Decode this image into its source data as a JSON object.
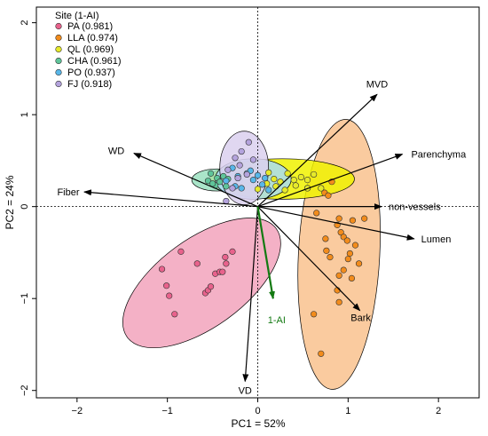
{
  "chart_data": {
    "type": "scatter",
    "xlabel": "PC1 = 52%",
    "ylabel": "PC2 = 24%",
    "xlim": [
      -2.45,
      2.45
    ],
    "ylim": [
      -2.08,
      2.17
    ],
    "xticks": [
      -2,
      -1,
      0,
      1,
      2
    ],
    "yticks": [
      -2,
      -1,
      0,
      1,
      2
    ],
    "tick_labels_x": [
      "−2",
      "−1",
      "0",
      "1",
      "2"
    ],
    "tick_labels_y": [
      "−2",
      "−1",
      "0",
      "1",
      "2"
    ],
    "legend": {
      "title": "Site (1-AI)",
      "placement": "top-left",
      "entries": [
        {
          "label": "PA (0.981)",
          "color": "#e8628c"
        },
        {
          "label": "LLA (0.974)",
          "color": "#f28c1c"
        },
        {
          "label": "QL (0.969)",
          "color": "#e6ea2a"
        },
        {
          "label": "CHA (0.961)",
          "color": "#5fc59a"
        },
        {
          "label": "PO (0.937)",
          "color": "#58b7e9"
        },
        {
          "label": "FJ (0.918)",
          "color": "#b4a3dd"
        }
      ]
    },
    "series": [
      {
        "name": "PA",
        "color": "#e8628c",
        "fill": "#f2a3bc",
        "ellipse": {
          "cx": -0.62,
          "cy": -0.83,
          "rx": 1.02,
          "ry": 0.48,
          "angle_deg": 36
        },
        "points": [
          [
            -1.06,
            -0.68
          ],
          [
            -1.01,
            -0.86
          ],
          [
            -0.98,
            -0.97
          ],
          [
            -0.92,
            -1.17
          ],
          [
            -0.85,
            -0.49
          ],
          [
            -0.67,
            -0.62
          ],
          [
            -0.58,
            -0.94
          ],
          [
            -0.55,
            -0.91
          ],
          [
            -0.52,
            -0.87
          ],
          [
            -0.47,
            -0.73
          ],
          [
            -0.42,
            -0.71
          ],
          [
            -0.39,
            -0.71
          ],
          [
            -0.35,
            -0.62
          ],
          [
            -0.36,
            -0.55
          ],
          [
            -0.28,
            -0.49
          ]
        ]
      },
      {
        "name": "LLA",
        "color": "#f28c1c",
        "fill": "#f9c28e",
        "ellipse": {
          "cx": 0.9,
          "cy": -0.52,
          "rx": 0.45,
          "ry": 1.47,
          "angle_deg": -3
        },
        "points": [
          [
            0.55,
            0.2
          ],
          [
            0.82,
            0.27
          ],
          [
            0.65,
            -0.07
          ],
          [
            0.74,
            0.15
          ],
          [
            0.78,
            0.12
          ],
          [
            0.9,
            -0.13
          ],
          [
            0.88,
            -0.2
          ],
          [
            0.92,
            -0.28
          ],
          [
            0.95,
            -0.33
          ],
          [
            0.99,
            -0.37
          ],
          [
            1.05,
            -0.15
          ],
          [
            1.08,
            -0.42
          ],
          [
            1.12,
            -0.62
          ],
          [
            1.18,
            -0.13
          ],
          [
            0.75,
            -0.35
          ],
          [
            0.76,
            -0.48
          ],
          [
            0.95,
            -0.69
          ],
          [
            1.02,
            -0.51
          ],
          [
            1.04,
            -0.78
          ],
          [
            0.88,
            -0.91
          ],
          [
            0.9,
            -1.04
          ],
          [
            0.62,
            -1.17
          ],
          [
            0.7,
            -1.6
          ],
          [
            1.0,
            -0.57
          ],
          [
            0.8,
            -0.55
          ],
          [
            0.9,
            -0.75
          ]
        ]
      },
      {
        "name": "QL",
        "color": "#e6ea2a",
        "fill": "#f0f200",
        "ellipse": {
          "cx": 0.27,
          "cy": 0.3,
          "rx": 0.8,
          "ry": 0.22,
          "angle_deg": 0
        },
        "points": [
          [
            0.0,
            0.19
          ],
          [
            0.1,
            0.25
          ],
          [
            0.18,
            0.3
          ],
          [
            0.25,
            0.27
          ],
          [
            0.33,
            0.36
          ],
          [
            0.4,
            0.29
          ],
          [
            0.48,
            0.32
          ],
          [
            0.55,
            0.29
          ],
          [
            0.62,
            0.35
          ],
          [
            0.7,
            0.2
          ],
          [
            0.42,
            0.23
          ],
          [
            0.3,
            0.18
          ],
          [
            0.55,
            0.2
          ],
          [
            0.12,
            0.37
          ],
          [
            0.2,
            0.22
          ]
        ]
      },
      {
        "name": "CHA",
        "color": "#5fc59a",
        "fill": "#9be1c0",
        "ellipse": {
          "cx": -0.45,
          "cy": 0.29,
          "rx": 0.28,
          "ry": 0.12,
          "angle_deg": 0
        },
        "points": [
          [
            -0.55,
            0.28
          ],
          [
            -0.52,
            0.36
          ],
          [
            -0.47,
            0.23
          ],
          [
            -0.45,
            0.31
          ],
          [
            -0.42,
            0.27
          ],
          [
            -0.38,
            0.33
          ],
          [
            -0.35,
            0.22
          ],
          [
            -0.33,
            0.3
          ],
          [
            -0.5,
            0.25
          ]
        ]
      },
      {
        "name": "PO",
        "color": "#58b7e9",
        "fill": "#a9dcf5",
        "ellipse": {
          "cx": -0.05,
          "cy": 0.3,
          "rx": 0.42,
          "ry": 0.22,
          "angle_deg": 0
        },
        "points": [
          [
            -0.35,
            0.28
          ],
          [
            -0.28,
            0.42
          ],
          [
            -0.22,
            0.33
          ],
          [
            -0.18,
            0.2
          ],
          [
            -0.12,
            0.36
          ],
          [
            -0.05,
            0.29
          ],
          [
            0.0,
            0.34
          ],
          [
            0.05,
            0.24
          ],
          [
            0.08,
            0.31
          ],
          [
            0.12,
            0.18
          ],
          [
            -0.08,
            0.39
          ],
          [
            -0.25,
            0.22
          ]
        ]
      },
      {
        "name": "FJ",
        "color": "#b4a3dd",
        "fill": "#dbd0ee",
        "ellipse": {
          "cx": -0.15,
          "cy": 0.42,
          "rx": 0.27,
          "ry": 0.4,
          "angle_deg": 0
        },
        "points": [
          [
            -0.33,
            0.4
          ],
          [
            -0.25,
            0.53
          ],
          [
            -0.18,
            0.6
          ],
          [
            -0.1,
            0.7
          ],
          [
            -0.05,
            0.51
          ],
          [
            -0.22,
            0.31
          ],
          [
            -0.28,
            0.2
          ],
          [
            -0.35,
            0.06
          ],
          [
            -0.12,
            0.35
          ],
          [
            -0.2,
            0.45
          ]
        ]
      }
    ],
    "loadings": [
      {
        "label": "MVD",
        "x": 1.32,
        "y": 1.22,
        "color": "#000000"
      },
      {
        "label": "Parenchyma",
        "x": 1.6,
        "y": 0.57,
        "color": "#000000"
      },
      {
        "label": "WD",
        "x": -1.37,
        "y": 0.58,
        "color": "#000000"
      },
      {
        "label": "Fiber",
        "x": -1.92,
        "y": 0.16,
        "color": "#000000"
      },
      {
        "label": "non-vessels",
        "x": 1.37,
        "y": 0.0,
        "color": "#000000"
      },
      {
        "label": "Lumen",
        "x": 1.73,
        "y": -0.35,
        "color": "#000000"
      },
      {
        "label": "Bark",
        "x": 1.13,
        "y": -1.13,
        "color": "#000000"
      },
      {
        "label": "VD",
        "x": -0.14,
        "y": -1.9,
        "color": "#000000"
      },
      {
        "label": "1-AI",
        "x": 0.17,
        "y": -1.0,
        "color": "#137a12"
      }
    ]
  }
}
